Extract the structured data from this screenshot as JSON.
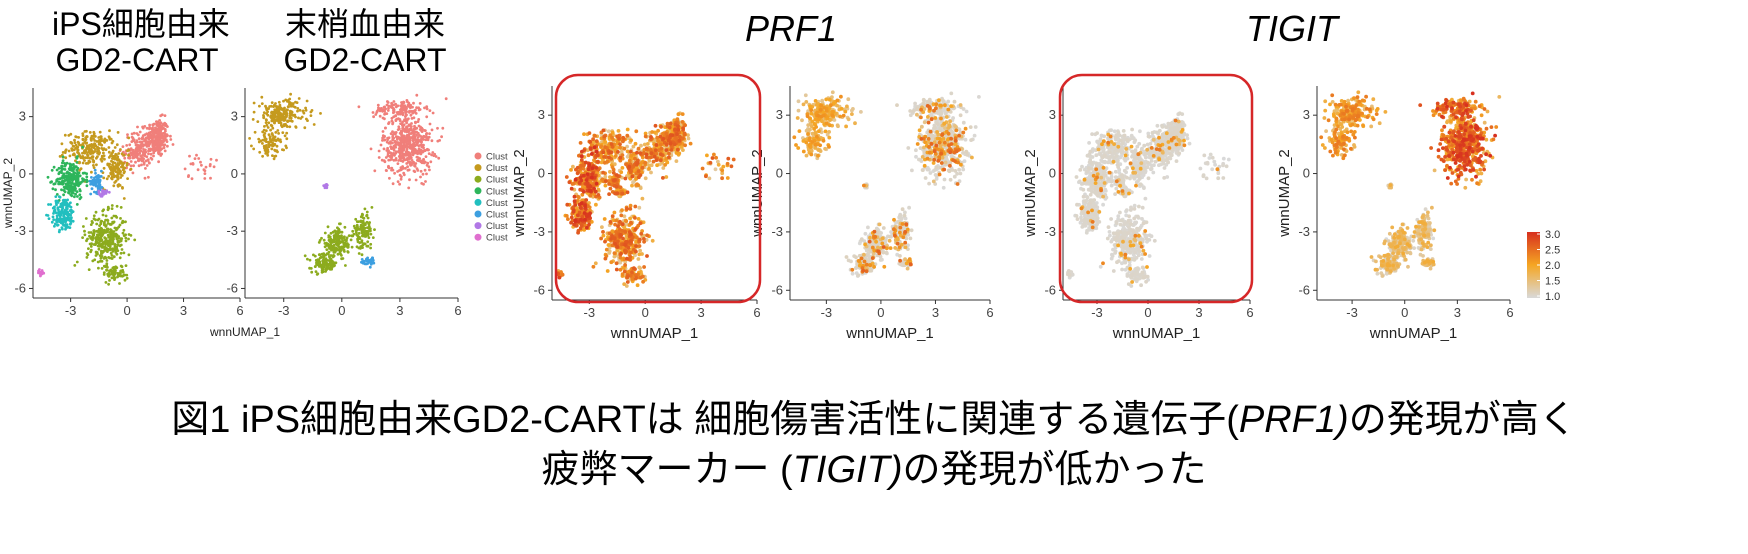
{
  "titles": {
    "ips_line1": "iPS細胞由来",
    "ips_line2": "GD2-CART",
    "pb_line1": "末梢血由来",
    "pb_line2": "GD2-CART",
    "gene_prf1": "PRF1",
    "gene_tigit": "TIGIT"
  },
  "axes": {
    "x_label": "wnnUMAP_1",
    "y_label": "wnnUMAP_2",
    "x_ticks": [
      "-3",
      "0",
      "3",
      "6"
    ],
    "y_ticks": [
      "3",
      "0",
      "-3",
      "-6"
    ]
  },
  "legend_clusters": {
    "labels": [
      "Clust",
      "Clust",
      "Clust",
      "Clust",
      "Clust",
      "Clust",
      "Clust",
      "Clust"
    ],
    "colors": [
      "#f07f7a",
      "#c59a1e",
      "#8cab1e",
      "#2db55b",
      "#22bfbf",
      "#3d9fe0",
      "#b178e6",
      "#e06fcf"
    ]
  },
  "colorbar": {
    "ticks": [
      "3.0",
      "2.5",
      "2.0",
      "1.5",
      "1.0"
    ],
    "low_color": "#d9d9d9",
    "mid_color": "#f5a623",
    "high_color": "#d7301f"
  },
  "highlight_color": "#d62728",
  "caption": {
    "line1_a": "図1 iPS細胞由来GD2-CARTは 細胞傷害活性に関連する遺伝子(",
    "line1_i": "PRF1)",
    "line1_b": "の発現が高く",
    "line2_a": "疲弊マーカー (",
    "line2_i": "TIGIT)",
    "line2_b": "の発現が低かった"
  },
  "chart_data": [
    {
      "type": "scatter",
      "panel": "iPS cluster map",
      "xlabel": "wnnUMAP_1",
      "ylabel": "wnnUMAP_2",
      "xlim": [
        -5,
        6
      ],
      "ylim": [
        -6.5,
        4.5
      ],
      "series": [
        {
          "name": "Clust",
          "color": "#f07f7a",
          "centroid": [
            1.5,
            1.8
          ]
        },
        {
          "name": "Clust",
          "color": "#c59a1e",
          "centroid": [
            -1.8,
            1.3
          ]
        },
        {
          "name": "Clust",
          "color": "#8cab1e",
          "centroid": [
            -1.0,
            -3.5
          ]
        },
        {
          "name": "Clust",
          "color": "#2db55b",
          "centroid": [
            -3.0,
            -0.4
          ]
        },
        {
          "name": "Clust",
          "color": "#22bfbf",
          "centroid": [
            -3.3,
            -2.3
          ]
        },
        {
          "name": "Clust",
          "color": "#3d9fe0",
          "centroid": [
            -1.6,
            -0.5
          ]
        },
        {
          "name": "Clust",
          "color": "#b178e6",
          "centroid": [
            -1.3,
            -1.0
          ]
        },
        {
          "name": "Clust",
          "color": "#e06fcf",
          "centroid": [
            -4.6,
            -5.2
          ]
        }
      ]
    },
    {
      "type": "scatter",
      "panel": "PB cluster map",
      "xlabel": "",
      "ylabel": "",
      "xlim": [
        -5,
        6
      ],
      "ylim": [
        -6.5,
        4.5
      ],
      "series": [
        {
          "name": "Clust",
          "color": "#f07f7a",
          "centroid": [
            3.3,
            1.7
          ]
        },
        {
          "name": "Clust",
          "color": "#c59a1e",
          "centroid": [
            -3.0,
            2.7
          ]
        },
        {
          "name": "Clust",
          "color": "#8cab1e",
          "centroid": [
            0.0,
            -3.5
          ]
        },
        {
          "name": "Clust",
          "color": "#3d9fe0",
          "centroid": [
            1.4,
            -4.6
          ]
        },
        {
          "name": "Clust",
          "color": "#b178e6",
          "centroid": [
            -0.8,
            -0.5
          ]
        }
      ]
    },
    {
      "type": "scatter",
      "panel": "PRF1 iPS",
      "xlabel": "wnnUMAP_1",
      "ylabel": "wnnUMAP_2",
      "xlim": [
        -5,
        6
      ],
      "ylim": [
        -6.5,
        4.5
      ],
      "expression_level": [
        1.0,
        3.0
      ],
      "mean_expression": 2.2
    },
    {
      "type": "scatter",
      "panel": "PRF1 PB",
      "xlabel": "wnnUMAP_1",
      "ylabel": "wnnUMAP_2",
      "xlim": [
        -5,
        6
      ],
      "ylim": [
        -6.5,
        4.5
      ],
      "expression_level": [
        1.0,
        3.0
      ],
      "mean_expression": 1.4
    },
    {
      "type": "scatter",
      "panel": "TIGIT iPS",
      "xlabel": "wnnUMAP_1",
      "ylabel": "wnnUMAP_2",
      "xlim": [
        -5,
        6
      ],
      "ylim": [
        -6.5,
        4.5
      ],
      "expression_level": [
        1.0,
        3.0
      ],
      "mean_expression": 1.1
    },
    {
      "type": "scatter",
      "panel": "TIGIT PB",
      "xlabel": "wnnUMAP_1",
      "ylabel": "wnnUMAP_2",
      "xlim": [
        -5,
        6
      ],
      "ylim": [
        -6.5,
        4.5
      ],
      "expression_level": [
        1.0,
        3.0
      ],
      "mean_expression": 2.3
    }
  ]
}
